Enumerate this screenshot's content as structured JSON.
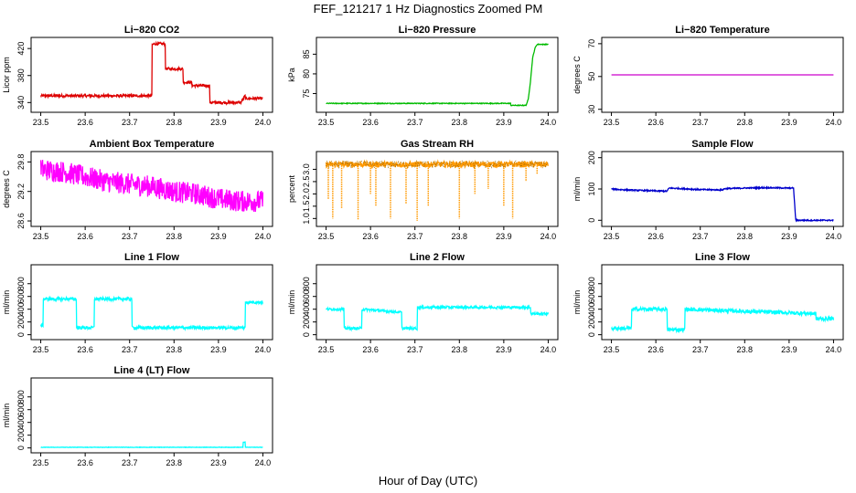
{
  "figure": {
    "title": "FEF_121217  1 Hz Diagnostics Zoomed PM",
    "xlabel": "Hour of Day (UTC)"
  },
  "chart_data": [
    {
      "id": "co2",
      "type": "line",
      "title": "Li−820 CO2",
      "ylabel": "Licor ppm",
      "xlim": [
        23.5,
        24.0
      ],
      "xticks": [
        "23.5",
        "23.6",
        "23.7",
        "23.8",
        "23.9",
        "24.0"
      ],
      "ylim": [
        330,
        432
      ],
      "yticks": [
        "340",
        "380",
        "420"
      ],
      "ytick_values": [
        340,
        380,
        420
      ],
      "color": "#dd0000",
      "series": [
        {
          "name": "CO2",
          "noise": 2,
          "x": [
            23.5,
            23.75,
            23.75,
            23.755,
            23.76,
            23.76,
            23.78,
            23.78,
            23.82,
            23.82,
            23.84,
            23.84,
            23.88,
            23.88,
            23.95,
            23.95,
            23.96,
            23.96,
            24.0
          ],
          "y": [
            350,
            350,
            425,
            427,
            427,
            427,
            427,
            390,
            390,
            370,
            370,
            365,
            365,
            340,
            340,
            340,
            350,
            346,
            346
          ]
        }
      ]
    },
    {
      "id": "pressure",
      "type": "line",
      "title": "Li−820 Pressure",
      "ylabel": "kPa",
      "xlim": [
        23.5,
        24.0
      ],
      "xticks": [
        "23.5",
        "23.6",
        "23.7",
        "23.8",
        "23.9",
        "24.0"
      ],
      "ylim": [
        71,
        88.5
      ],
      "yticks": [
        "75",
        "80",
        "85"
      ],
      "ytick_values": [
        75,
        80,
        85
      ],
      "color": "#00bb00",
      "series": [
        {
          "name": "Pressure",
          "noise": 0.1,
          "x": [
            23.5,
            23.915,
            23.915,
            23.95,
            23.955,
            23.96,
            23.965,
            23.97,
            23.975,
            23.98,
            24.0
          ],
          "y": [
            72.5,
            72.5,
            72.0,
            72.0,
            73.5,
            78,
            84,
            86.5,
            87.5,
            87.5,
            87.5
          ]
        }
      ]
    },
    {
      "id": "temperature",
      "type": "line",
      "title": "Li−820 Temperature",
      "ylabel": "degrees C",
      "xlim": [
        23.5,
        24.0
      ],
      "xticks": [
        "23.5",
        "23.6",
        "23.7",
        "23.8",
        "23.9",
        "24.0"
      ],
      "ylim": [
        30,
        72
      ],
      "yticks": [
        "30",
        "50",
        "70"
      ],
      "ytick_values": [
        30,
        50,
        70
      ],
      "color": "#cc00cc",
      "series": [
        {
          "name": "Temperature",
          "noise": 0,
          "x": [
            23.5,
            24.0
          ],
          "y": [
            51,
            51
          ]
        }
      ]
    },
    {
      "id": "ambient_temp",
      "type": "line",
      "title": "Ambient Box Temperature",
      "ylabel": "degrees C",
      "xlim": [
        23.5,
        24.0
      ],
      "xticks": [
        "23.5",
        "23.6",
        "23.7",
        "23.8",
        "23.9",
        "24.0"
      ],
      "ylim": [
        28.55,
        29.95
      ],
      "yticks": [
        "28.6",
        "29.2",
        "29.8"
      ],
      "ytick_values": [
        28.6,
        29.2,
        29.8
      ],
      "color": "#ff00ff",
      "series": [
        {
          "name": "Ambient",
          "noise": 0.22,
          "x": [
            23.5,
            23.55,
            23.6,
            23.65,
            23.7,
            23.75,
            23.8,
            23.85,
            23.9,
            23.95,
            24.0
          ],
          "y": [
            29.65,
            29.6,
            29.5,
            29.4,
            29.35,
            29.3,
            29.2,
            29.15,
            29.05,
            29.0,
            29.0
          ]
        }
      ]
    },
    {
      "id": "gas_rh",
      "type": "line",
      "title": "Gas Stream RH",
      "ylabel": "percent",
      "xlim": [
        23.5,
        24.0
      ],
      "xticks": [
        "23.5",
        "23.6",
        "23.7",
        "23.8",
        "23.9",
        "24.0"
      ],
      "ylim": [
        0.8,
        3.6
      ],
      "yticks": [
        "1.0",
        "1.5",
        "2.0",
        "2.5",
        "3.0"
      ],
      "ytick_values": [
        1.0,
        1.5,
        2.0,
        2.5,
        3.0
      ],
      "color": "#ff9900",
      "series": [
        {
          "name": "RH",
          "noise": 0.12,
          "x": [
            23.5,
            24.0
          ],
          "y": [
            3.2,
            3.2
          ]
        }
      ],
      "dips": [
        {
          "x": 23.505,
          "y": 1.8
        },
        {
          "x": 23.515,
          "y": 1.0
        },
        {
          "x": 23.535,
          "y": 1.4
        },
        {
          "x": 23.572,
          "y": 0.95
        },
        {
          "x": 23.6,
          "y": 2.0
        },
        {
          "x": 23.612,
          "y": 1.5
        },
        {
          "x": 23.645,
          "y": 1.0
        },
        {
          "x": 23.68,
          "y": 1.6
        },
        {
          "x": 23.705,
          "y": 0.9
        },
        {
          "x": 23.73,
          "y": 1.5
        },
        {
          "x": 23.8,
          "y": 1.0
        },
        {
          "x": 23.835,
          "y": 2.0
        },
        {
          "x": 23.865,
          "y": 2.2
        },
        {
          "x": 23.9,
          "y": 1.5
        },
        {
          "x": 23.92,
          "y": 1.0
        },
        {
          "x": 23.95,
          "y": 2.5
        },
        {
          "x": 23.975,
          "y": 2.8
        }
      ]
    },
    {
      "id": "sample_flow",
      "type": "line",
      "title": "Sample Flow",
      "ylabel": "ml/min",
      "xlim": [
        23.5,
        24.0
      ],
      "xticks": [
        "23.5",
        "23.6",
        "23.7",
        "23.8",
        "23.9",
        "24.0"
      ],
      "ylim": [
        -10,
        210
      ],
      "yticks": [
        "0",
        "100",
        "200"
      ],
      "ytick_values": [
        0,
        100,
        200
      ],
      "color": "#0000cc",
      "series": [
        {
          "name": "Sample",
          "noise": 2,
          "x": [
            23.5,
            23.52,
            23.55,
            23.6,
            23.625,
            23.63,
            23.66,
            23.7,
            23.75,
            23.755,
            23.8,
            23.85,
            23.9,
            23.91,
            23.915,
            24.0
          ],
          "y": [
            100,
            98,
            96,
            94,
            93,
            103,
            101,
            98,
            97,
            101,
            103,
            104,
            103,
            103,
            0,
            0
          ]
        }
      ]
    },
    {
      "id": "line1_flow",
      "type": "line",
      "title": "Line 1 Flow",
      "ylabel": "ml/min",
      "xlim": [
        23.5,
        24.0
      ],
      "xticks": [
        "23.5",
        "23.6",
        "23.7",
        "23.8",
        "23.9",
        "24.0"
      ],
      "ylim": [
        -30,
        1050
      ],
      "yticks": [
        "0",
        "200",
        "400",
        "600",
        "800"
      ],
      "ytick_values": [
        0,
        200,
        400,
        600,
        800
      ],
      "color": "#00ffff",
      "series": [
        {
          "name": "Line1",
          "noise": 25,
          "x": [
            23.5,
            23.505,
            23.505,
            23.58,
            23.58,
            23.62,
            23.62,
            23.705,
            23.705,
            23.96,
            23.96,
            24.0
          ],
          "y": [
            150,
            150,
            560,
            560,
            110,
            110,
            560,
            560,
            110,
            110,
            510,
            510
          ]
        }
      ]
    },
    {
      "id": "line2_flow",
      "type": "line",
      "title": "Line 2 Flow",
      "ylabel": "ml/min",
      "xlim": [
        23.5,
        24.0
      ],
      "xticks": [
        "23.5",
        "23.6",
        "23.7",
        "23.8",
        "23.9",
        "24.0"
      ],
      "ylim": [
        -30,
        1050
      ],
      "yticks": [
        "0",
        "200",
        "400",
        "600",
        "800"
      ],
      "ytick_values": [
        0,
        200,
        400,
        600,
        800
      ],
      "color": "#00ffff",
      "series": [
        {
          "name": "Line2",
          "noise": 20,
          "x": [
            23.5,
            23.54,
            23.54,
            23.58,
            23.58,
            23.67,
            23.67,
            23.705,
            23.705,
            23.96,
            23.96,
            24.0
          ],
          "y": [
            400,
            400,
            100,
            100,
            400,
            350,
            100,
            100,
            430,
            430,
            330,
            330
          ]
        }
      ]
    },
    {
      "id": "line3_flow",
      "type": "line",
      "title": "Line 3 Flow",
      "ylabel": "ml/min",
      "xlim": [
        23.5,
        24.0
      ],
      "xticks": [
        "23.5",
        "23.6",
        "23.7",
        "23.8",
        "23.9",
        "24.0"
      ],
      "ylim": [
        -30,
        1050
      ],
      "yticks": [
        "0",
        "200",
        "400",
        "600",
        "800"
      ],
      "ytick_values": [
        0,
        200,
        400,
        600,
        800
      ],
      "color": "#00ffff",
      "series": [
        {
          "name": "Line3",
          "noise": 30,
          "x": [
            23.5,
            23.505,
            23.505,
            23.545,
            23.545,
            23.625,
            23.625,
            23.665,
            23.665,
            23.96,
            23.96,
            24.0
          ],
          "y": [
            100,
            100,
            100,
            100,
            400,
            400,
            80,
            80,
            400,
            330,
            250,
            250
          ]
        }
      ]
    },
    {
      "id": "line4_flow",
      "type": "line",
      "title": "Line 4 (LT) Flow",
      "ylabel": "ml/min",
      "xlim": [
        23.5,
        24.0
      ],
      "xticks": [
        "23.5",
        "23.6",
        "23.7",
        "23.8",
        "23.9",
        "24.0"
      ],
      "ylim": [
        -30,
        1050
      ],
      "yticks": [
        "0",
        "200",
        "400",
        "600",
        "800"
      ],
      "ytick_values": [
        0,
        200,
        400,
        600,
        800
      ],
      "color": "#00ffff",
      "series": [
        {
          "name": "Line4",
          "noise": 3,
          "x": [
            23.5,
            23.955,
            23.955,
            23.96,
            23.96,
            24.0
          ],
          "y": [
            10,
            10,
            90,
            90,
            10,
            10
          ]
        }
      ]
    }
  ]
}
